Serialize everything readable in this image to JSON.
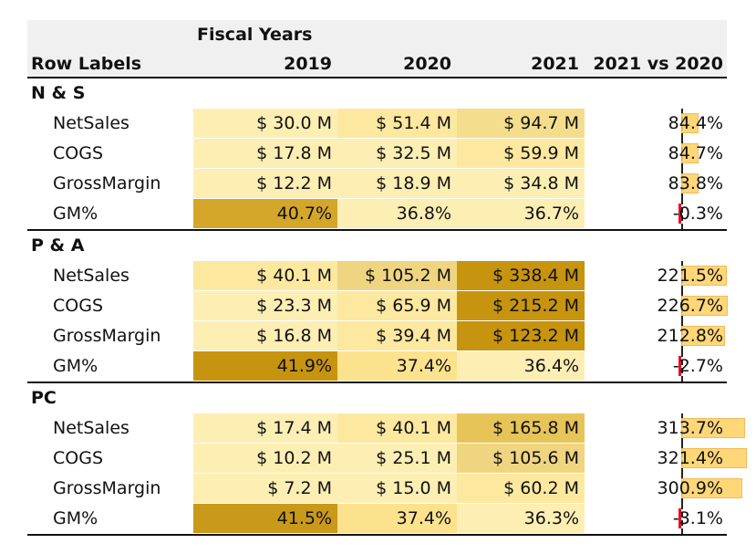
{
  "header": {
    "column_group_title": "Fiscal Years",
    "row_labels_title": "Row Labels",
    "columns": [
      "2019",
      "2020",
      "2021",
      "2021 vs 2020"
    ]
  },
  "groups": [
    {
      "name": "N & S",
      "rows": [
        {
          "label": "NetSales",
          "v2019": "$ 30.0 M",
          "v2020": "$ 51.4 M",
          "v2021": "$ 94.7 M",
          "vs": "84.4%",
          "vs_pct": 84.4,
          "colors": [
            "#fdeeb3",
            "#fde8a0",
            "#f4dd8d"
          ]
        },
        {
          "label": "COGS",
          "v2019": "$ 17.8 M",
          "v2020": "$ 32.5 M",
          "v2021": "$ 59.9 M",
          "vs": "84.7%",
          "vs_pct": 84.7,
          "colors": [
            "#fdeeb3",
            "#fdeeb3",
            "#fde8a0"
          ]
        },
        {
          "label": "GrossMargin",
          "v2019": "$ 12.2 M",
          "v2020": "$ 18.9 M",
          "v2021": "$ 34.8 M",
          "vs": "83.8%",
          "vs_pct": 83.8,
          "colors": [
            "#fdeeb3",
            "#fdeeb3",
            "#fdeeb3"
          ]
        },
        {
          "label": "GM%",
          "v2019": "40.7%",
          "v2020": "36.8%",
          "v2021": "36.7%",
          "vs": "-0.3%",
          "vs_pct": -0.3,
          "colors": [
            "#d4a72a",
            "#fdeeb3",
            "#fdeeb3"
          ]
        }
      ]
    },
    {
      "name": "P & A",
      "rows": [
        {
          "label": "NetSales",
          "v2019": "$ 40.1 M",
          "v2020": "$ 105.2 M",
          "v2021": "$ 338.4 M",
          "vs": "221.5%",
          "vs_pct": 221.5,
          "colors": [
            "#fde8a0",
            "#f0d581",
            "#c7940f"
          ]
        },
        {
          "label": "COGS",
          "v2019": "$ 23.3 M",
          "v2020": "$ 65.9 M",
          "v2021": "$ 215.2 M",
          "vs": "226.7%",
          "vs_pct": 226.7,
          "colors": [
            "#fdeeb3",
            "#fde8a0",
            "#c7940f"
          ]
        },
        {
          "label": "GrossMargin",
          "v2019": "$ 16.8 M",
          "v2020": "$ 39.4 M",
          "v2021": "$ 123.2 M",
          "vs": "212.8%",
          "vs_pct": 212.8,
          "colors": [
            "#fdeeb3",
            "#fde8a0",
            "#c7940f"
          ]
        },
        {
          "label": "GM%",
          "v2019": "41.9%",
          "v2020": "37.4%",
          "v2021": "36.4%",
          "vs": "-2.7%",
          "vs_pct": -2.7,
          "colors": [
            "#c7940f",
            "#fde28e",
            "#fdeeb3"
          ]
        }
      ]
    },
    {
      "name": "PC",
      "rows": [
        {
          "label": "NetSales",
          "v2019": "$ 17.4 M",
          "v2020": "$ 40.1 M",
          "v2021": "$ 165.8 M",
          "vs": "313.7%",
          "vs_pct": 313.7,
          "colors": [
            "#fdeeb3",
            "#fde8a0",
            "#e6c457"
          ]
        },
        {
          "label": "COGS",
          "v2019": "$ 10.2 M",
          "v2020": "$ 25.1 M",
          "v2021": "$ 105.6 M",
          "vs": "321.4%",
          "vs_pct": 321.4,
          "colors": [
            "#fdeeb3",
            "#fdeeb3",
            "#f0d581"
          ]
        },
        {
          "label": "GrossMargin",
          "v2019": "$ 7.2 M",
          "v2020": "$ 15.0 M",
          "v2021": "$ 60.2 M",
          "vs": "300.9%",
          "vs_pct": 300.9,
          "colors": [
            "#fdeeb3",
            "#fdeeb3",
            "#fde8a0"
          ]
        },
        {
          "label": "GM%",
          "v2019": "41.5%",
          "v2020": "37.4%",
          "v2021": "36.3%",
          "vs": "-3.1%",
          "vs_pct": -3.1,
          "colors": [
            "#c9991a",
            "#fde28e",
            "#fdeeb3"
          ]
        }
      ]
    }
  ]
}
